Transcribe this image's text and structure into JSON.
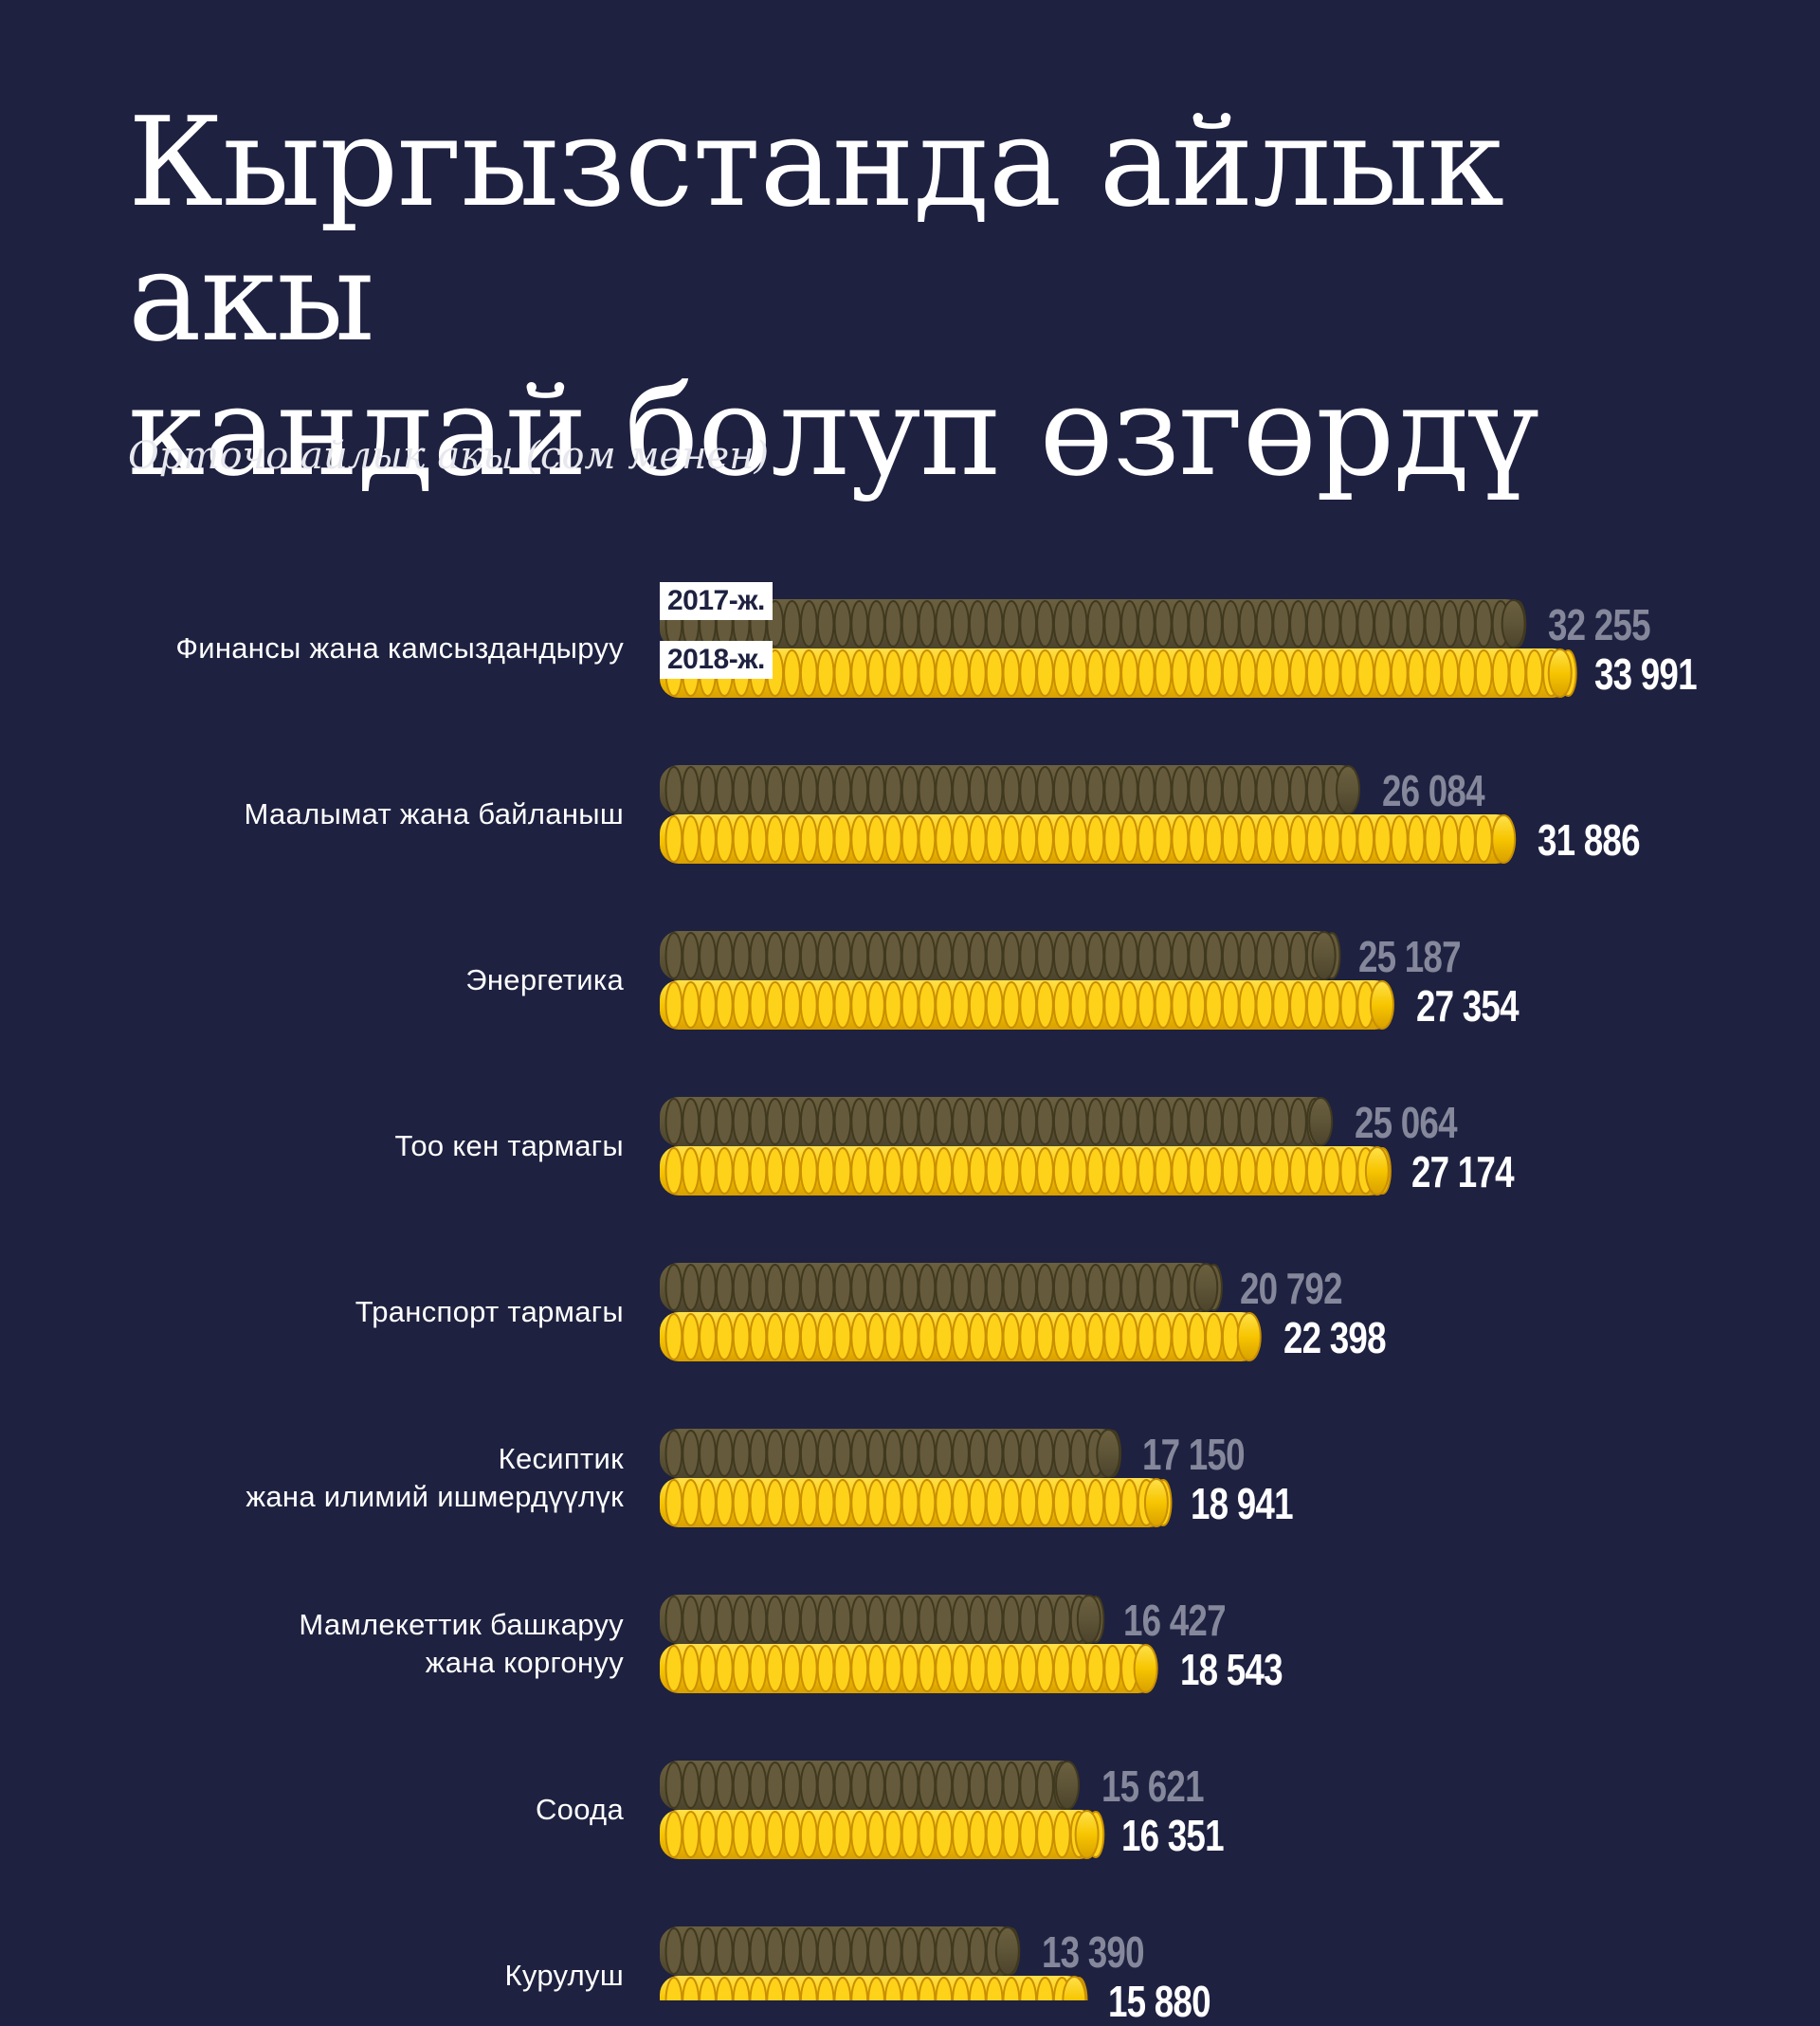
{
  "title_line1": "Кыргызстанда айлык акы",
  "title_line2": "кандай болуп өзгөрдү",
  "subtitle": "Орточо айлык акы (сом менен)",
  "colors": {
    "background": "#1e2140",
    "prev_year_coin": "#5e5437",
    "curr_year_coin": "#f7c500",
    "prev_value_text": "#85879b",
    "curr_value_text": "#ffffff"
  },
  "chart_data": {
    "type": "bar",
    "title": "Кыргызстанда айлык акы кандай болуп өзгөрдү",
    "subtitle": "Орточо айлык акы (сом менен)",
    "orientation": "horizontal",
    "xlim": [
      0,
      34000
    ],
    "categories": [
      "Финансы жана камсыздандыруу",
      "Маалымат жана байланыш",
      "Энергетика",
      "Тоо кен тармагы",
      "Транспорт тармагы",
      "Кесиптик\nжана илимий ишмердүүлүк",
      "Мамлекеттик башкаруу\nжана коргонуу",
      "Соода",
      "Курулуш"
    ],
    "series": [
      {
        "name": "2017-ж.",
        "values": [
          32255,
          26084,
          25187,
          25064,
          20792,
          17150,
          16427,
          15621,
          13390
        ],
        "labels": [
          "32 255",
          "26 084",
          "25 187",
          "25 064",
          "20 792",
          "17 150",
          "16 427",
          "15 621",
          "13 390"
        ]
      },
      {
        "name": "2018-ж.",
        "values": [
          33991,
          31886,
          27354,
          27174,
          22398,
          18941,
          18543,
          16351,
          15880
        ],
        "labels": [
          "33 991",
          "31 886",
          "27 354",
          "27 174",
          "22 398",
          "18 941",
          "18 543",
          "16 351",
          "15 880"
        ]
      }
    ]
  }
}
